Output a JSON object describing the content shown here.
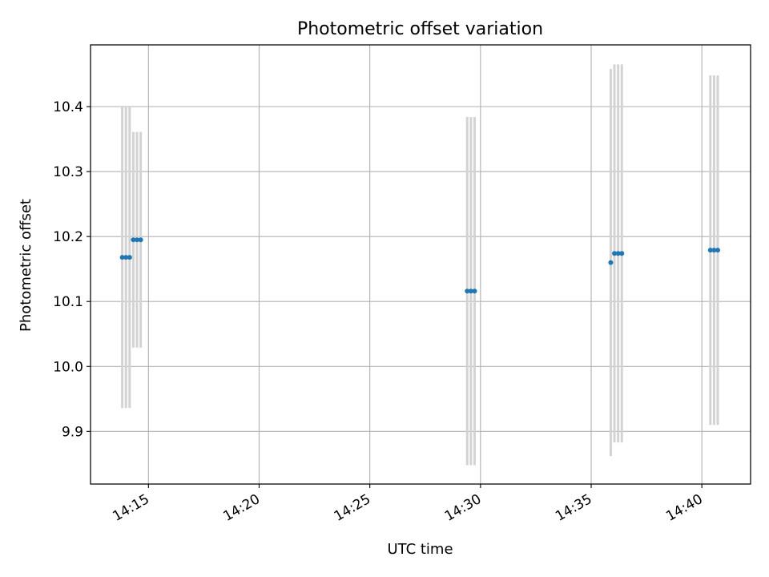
{
  "chart_data": {
    "type": "scatter",
    "title": "Photometric offset variation",
    "xlabel": "UTC time",
    "ylabel": "Photometric offset",
    "x_axis_kind": "time",
    "xlim": [
      "14:12:23",
      "14:42:12"
    ],
    "ylim": [
      9.819,
      10.495
    ],
    "x_ticks": [
      "14:15",
      "14:20",
      "14:25",
      "14:30",
      "14:35",
      "14:40"
    ],
    "y_ticks": [
      "9.9",
      "10.0",
      "10.1",
      "10.2",
      "10.3",
      "10.4"
    ],
    "grid": true,
    "legend": "none",
    "colors": {
      "point": "#1f77b4",
      "errorbar": "#d3d3d3",
      "grid": "#b0b0b0",
      "axes": "#000000"
    },
    "series": [
      {
        "points": [
          {
            "x": "14:13:49",
            "y": 10.168,
            "yerr": 0.232
          },
          {
            "x": "14:13:59",
            "y": 10.168,
            "yerr": 0.232
          },
          {
            "x": "14:14:09",
            "y": 10.168,
            "yerr": 0.232
          },
          {
            "x": "14:14:19",
            "y": 10.195,
            "yerr": 0.166
          },
          {
            "x": "14:14:29",
            "y": 10.195,
            "yerr": 0.166
          },
          {
            "x": "14:14:39",
            "y": 10.195,
            "yerr": 0.166
          },
          {
            "x": "14:29:24",
            "y": 10.116,
            "yerr": 0.268
          },
          {
            "x": "14:29:34",
            "y": 10.116,
            "yerr": 0.268
          },
          {
            "x": "14:29:44",
            "y": 10.116,
            "yerr": 0.268
          },
          {
            "x": "14:35:53",
            "y": 10.16,
            "yerr": 0.298
          },
          {
            "x": "14:36:03",
            "y": 10.174,
            "yerr": 0.291
          },
          {
            "x": "14:36:13",
            "y": 10.174,
            "yerr": 0.291
          },
          {
            "x": "14:36:23",
            "y": 10.174,
            "yerr": 0.291
          },
          {
            "x": "14:40:23",
            "y": 10.179,
            "yerr": 0.269
          },
          {
            "x": "14:40:33",
            "y": 10.179,
            "yerr": 0.269
          },
          {
            "x": "14:40:43",
            "y": 10.179,
            "yerr": 0.269
          }
        ]
      }
    ]
  }
}
